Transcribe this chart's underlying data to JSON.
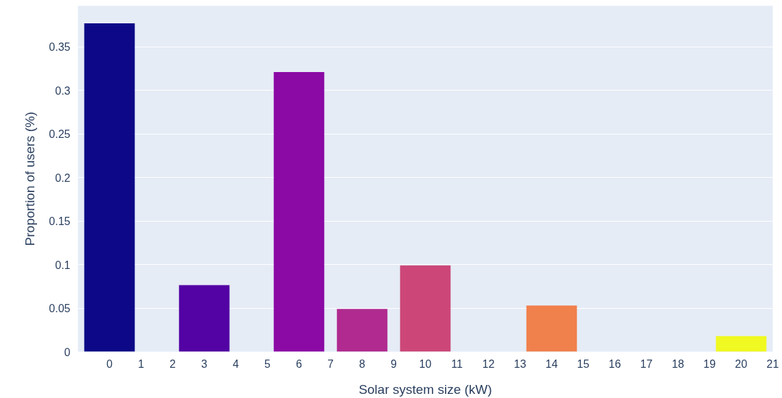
{
  "chart_data": {
    "type": "bar",
    "xlabel": "Solar system size (kW)",
    "ylabel": "Proportion of users (%)",
    "x": [
      0,
      3,
      6,
      8,
      10,
      14,
      20
    ],
    "values": [
      0.377,
      0.0765,
      0.321,
      0.049,
      0.099,
      0.053,
      0.018
    ],
    "colors": [
      "#0d0887",
      "#5302a3",
      "#8b0aa5",
      "#b02a8f",
      "#cc4778",
      "#f0804c",
      "#f0f921"
    ],
    "xlim": [
      -1,
      21
    ],
    "xticks": [
      0,
      1,
      2,
      3,
      4,
      5,
      6,
      7,
      8,
      9,
      10,
      11,
      12,
      13,
      14,
      15,
      16,
      17,
      18,
      19,
      20,
      21
    ],
    "ylim": [
      0,
      0.397
    ],
    "yticks": [
      0,
      0.05,
      0.1,
      0.15,
      0.2,
      0.25,
      0.3,
      0.35
    ],
    "grid": "y"
  }
}
